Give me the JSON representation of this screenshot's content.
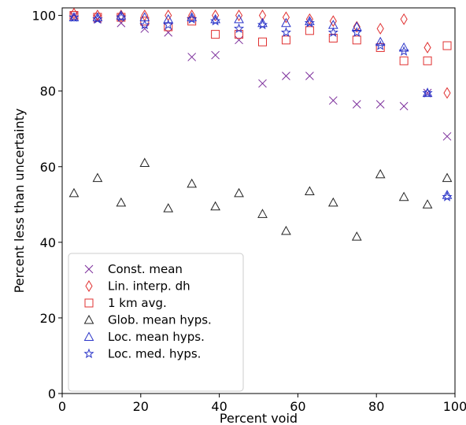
{
  "chart_data": {
    "type": "scatter",
    "title": "",
    "xlabel": "Percent void",
    "ylabel": "Percent less than uncertainty",
    "xlim": [
      0,
      100
    ],
    "ylim": [
      0,
      102
    ],
    "x_ticks": [
      "0",
      "20",
      "40",
      "60",
      "80",
      "100"
    ],
    "y_ticks": [
      "0",
      "20",
      "40",
      "60",
      "80",
      "100"
    ],
    "grid": false,
    "legend_position": "bottom-left",
    "series": [
      {
        "name": "Const. mean",
        "marker": "x",
        "color": "#7b2d9b",
        "x": [
          3,
          9,
          15,
          21,
          27,
          33,
          39,
          45,
          51,
          57,
          63,
          69,
          75,
          81,
          87,
          93,
          98
        ],
        "y": [
          100,
          99,
          98,
          96.5,
          95.5,
          89,
          89.5,
          93.5,
          82,
          84,
          84,
          77.5,
          76.5,
          76.5,
          76,
          79.5,
          68
        ]
      },
      {
        "name": "Lin. interp. dh",
        "marker": "diamond",
        "color": "#e03030",
        "x": [
          3,
          9,
          15,
          21,
          27,
          33,
          39,
          45,
          51,
          57,
          63,
          69,
          75,
          81,
          87,
          93,
          98
        ],
        "y": [
          100.5,
          100,
          100,
          100,
          100,
          100,
          100,
          100,
          100,
          99.5,
          99,
          98.5,
          97,
          96.5,
          99,
          91.5,
          79.5
        ]
      },
      {
        "name": " 1 km avg.",
        "marker": "square",
        "color": "#e03030",
        "x": [
          3,
          9,
          15,
          21,
          27,
          33,
          39,
          45,
          51,
          57,
          63,
          69,
          75,
          81,
          87,
          93,
          98
        ],
        "y": [
          100,
          99.5,
          99.5,
          98.5,
          97,
          98.5,
          95,
          95,
          93,
          93.5,
          96,
          94,
          93.5,
          91.5,
          88,
          88,
          92
        ]
      },
      {
        "name": "Glob. mean hyps.",
        "marker": "triangle",
        "color": "#222222",
        "x": [
          3,
          9,
          15,
          21,
          27,
          33,
          39,
          45,
          51,
          57,
          63,
          69,
          75,
          81,
          87,
          93,
          98
        ],
        "y": [
          53,
          57,
          50.5,
          61,
          49,
          55.5,
          49.5,
          53,
          47.5,
          43,
          53.5,
          50.5,
          41.5,
          58,
          52,
          50,
          57
        ]
      },
      {
        "name": "Loc. mean hyps.",
        "marker": "triangle",
        "color": "#2b35c8",
        "x": [
          3,
          9,
          15,
          21,
          27,
          33,
          39,
          45,
          51,
          57,
          63,
          69,
          75,
          81,
          87,
          93,
          98
        ],
        "y": [
          99.5,
          99.5,
          100,
          99.5,
          99,
          99.5,
          99,
          99,
          98,
          98,
          98.5,
          97.5,
          97,
          93,
          91.5,
          79.5,
          52.5
        ]
      },
      {
        "name": "Loc. med. hyps.",
        "marker": "star",
        "color": "#2b35c8",
        "x": [
          3,
          9,
          15,
          21,
          27,
          33,
          39,
          45,
          51,
          57,
          63,
          69,
          75,
          81,
          87,
          93,
          98
        ],
        "y": [
          99.5,
          99,
          99.5,
          97.5,
          97.5,
          99,
          98.5,
          96.5,
          97.5,
          95.5,
          98,
          95.5,
          95.5,
          92,
          90.5,
          79.5,
          52
        ]
      }
    ]
  }
}
